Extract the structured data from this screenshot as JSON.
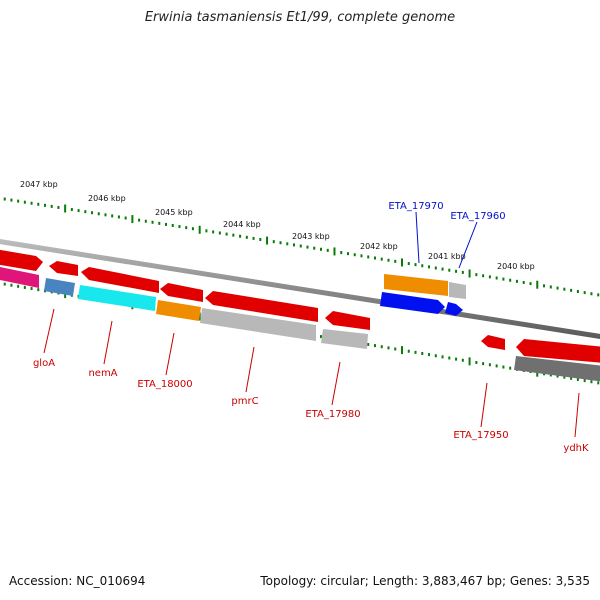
{
  "title": "Erwinia tasmaniensis Et1/99, complete genome",
  "footer": {
    "accession": "Accession: NC_010694",
    "stats": "Topology: circular; Length: 3,883,467 bp; Genes: 3,535"
  },
  "colors": {
    "red": "#e00000",
    "pink": "#e0157a",
    "steelblue": "#4a84c0",
    "cyan": "#18e8ee",
    "orange": "#f08c00",
    "grey": "#b8b8b8",
    "darkgrey": "#707070",
    "blue": "#0010f0",
    "tick": "#0a7a0a",
    "label_red": "#cc0000",
    "label_blue": "#0010cc"
  },
  "kbp_labels": [
    "2047 kbp",
    "2046 kbp",
    "2045 kbp",
    "2044 kbp",
    "2043 kbp",
    "2042 kbp",
    "2041 kbp",
    "2040 kbp"
  ],
  "gene_labels": [
    {
      "text": "gloA",
      "color": "label_red"
    },
    {
      "text": "nemA",
      "color": "label_red"
    },
    {
      "text": "ETA_18000",
      "color": "label_red"
    },
    {
      "text": "pmrC",
      "color": "label_red"
    },
    {
      "text": "ETA_17980",
      "color": "label_red"
    },
    {
      "text": "ETA_17970",
      "color": "label_blue"
    },
    {
      "text": "ETA_17960",
      "color": "label_blue"
    },
    {
      "text": "ETA_17950",
      "color": "label_red"
    },
    {
      "text": "ydhK",
      "color": "label_red"
    }
  ]
}
